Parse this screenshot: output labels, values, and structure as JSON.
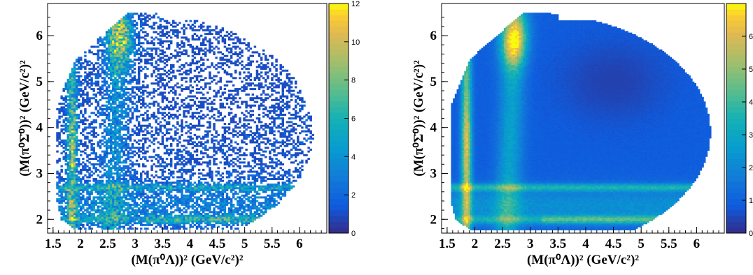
{
  "chart_data": [
    {
      "type": "heatmap",
      "title": "",
      "xlabel": "(M(π⁰Λ))² (GeV/c²)²",
      "ylabel": "(M(π⁰Σ̄⁰))² (GeV/c²)²",
      "xlim": [
        1.4,
        6.5
      ],
      "ylim": [
        1.7,
        6.7
      ],
      "x_ticks": [
        "1.5",
        "2",
        "2.5",
        "3",
        "3.5",
        "4",
        "4.5",
        "5",
        "5.5",
        "6"
      ],
      "y_ticks": [
        "2",
        "3",
        "4",
        "5",
        "6"
      ],
      "zlim": [
        0,
        12
      ],
      "z_ticks": [
        "0",
        "2",
        "4",
        "6",
        "8",
        "10",
        "12"
      ],
      "colormap": "parula",
      "distribution": "sparse Dalitz plot: dense band near x≈1.8-2.9 with peak near x≈2.8,y≈6; horizontal band near y≈2-2.7; sparse elsewhere"
    },
    {
      "type": "heatmap",
      "title": "",
      "xlabel": "(M(π⁰Λ))² (GeV/c²)²",
      "ylabel": "(M(π⁰Σ̄⁰))² (GeV/c²)²",
      "xlim": [
        1.4,
        6.5
      ],
      "ylim": [
        1.7,
        6.7
      ],
      "x_ticks": [
        "1.5",
        "2",
        "2.5",
        "3",
        "3.5",
        "4",
        "4.5",
        "5",
        "5.5",
        "6"
      ],
      "y_ticks": [
        "2",
        "3",
        "4",
        "5",
        "6"
      ],
      "zlim": [
        0,
        7
      ],
      "z_ticks": [
        "0",
        "1",
        "2",
        "3",
        "4",
        "5",
        "6"
      ],
      "colormap": "parula",
      "distribution": "smooth Dalitz plot: vertical band at x≈1.85, strong band at x≈2.7 peaking near y≈5.8-6.1, horizontal bands at y≈2.0 and y≈2.7"
    }
  ]
}
